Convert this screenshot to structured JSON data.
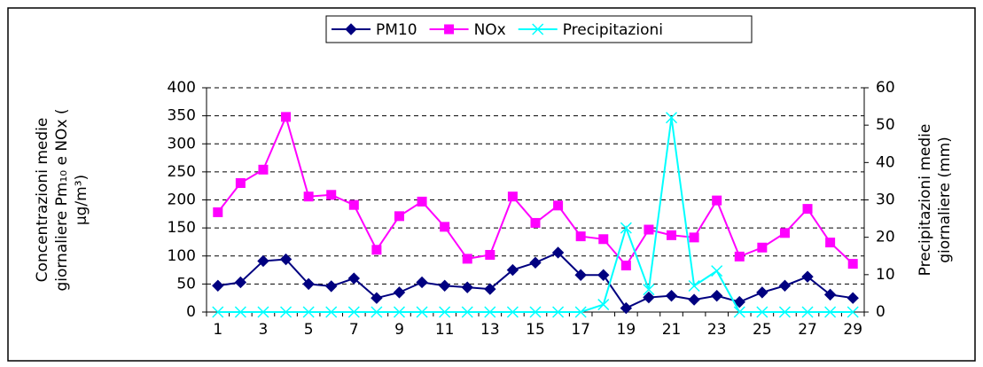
{
  "chart_data": {
    "type": "line",
    "y_label": [
      "Concentrazioni medie",
      "giornaliere Pm₁₀ e NOx (",
      "µg/m³)"
    ],
    "y2_label": [
      "Precipitazioni medie",
      "giornaliere (mm)"
    ],
    "categories": [
      1,
      null,
      3,
      null,
      5,
      null,
      7,
      null,
      9,
      null,
      11,
      null,
      13,
      null,
      15,
      null,
      17,
      null,
      19,
      null,
      21,
      null,
      23,
      null,
      25,
      null,
      27,
      null,
      29
    ],
    "series": [
      {
        "name": "PM10",
        "color": "#000080",
        "marker": "diamond",
        "values": [
          47,
          53,
          91,
          94,
          50,
          46,
          60,
          25,
          35,
          53,
          47,
          44,
          41,
          75,
          88,
          106,
          66,
          66,
          7,
          26,
          29,
          22,
          29,
          18,
          35,
          47,
          63,
          31,
          25
        ]
      },
      {
        "name": "NOx",
        "color": "#FF00FF",
        "marker": "square",
        "values": [
          178,
          230,
          254,
          348,
          206,
          209,
          191,
          111,
          171,
          197,
          152,
          95,
          102,
          206,
          159,
          190,
          135,
          130,
          83,
          147,
          137,
          133,
          199,
          99,
          115,
          141,
          184,
          124,
          86
        ]
      },
      {
        "name": "Precipitazioni",
        "color": "#00FFFF",
        "marker": "star",
        "axis": "y2",
        "values": [
          0,
          0,
          0,
          0,
          0,
          0,
          0,
          0,
          0,
          0,
          0,
          0,
          0,
          0,
          0,
          0,
          0,
          2,
          22.5,
          6,
          52,
          7,
          11,
          0,
          0,
          0,
          0,
          0,
          0
        ]
      }
    ],
    "ylim": [
      0,
      400
    ],
    "yticks": [
      0,
      50,
      100,
      150,
      200,
      250,
      300,
      350,
      400
    ],
    "y2lim": [
      0,
      60
    ],
    "y2ticks": [
      0,
      10,
      20,
      30,
      40,
      50,
      60
    ],
    "grid": true,
    "legend": "top"
  }
}
